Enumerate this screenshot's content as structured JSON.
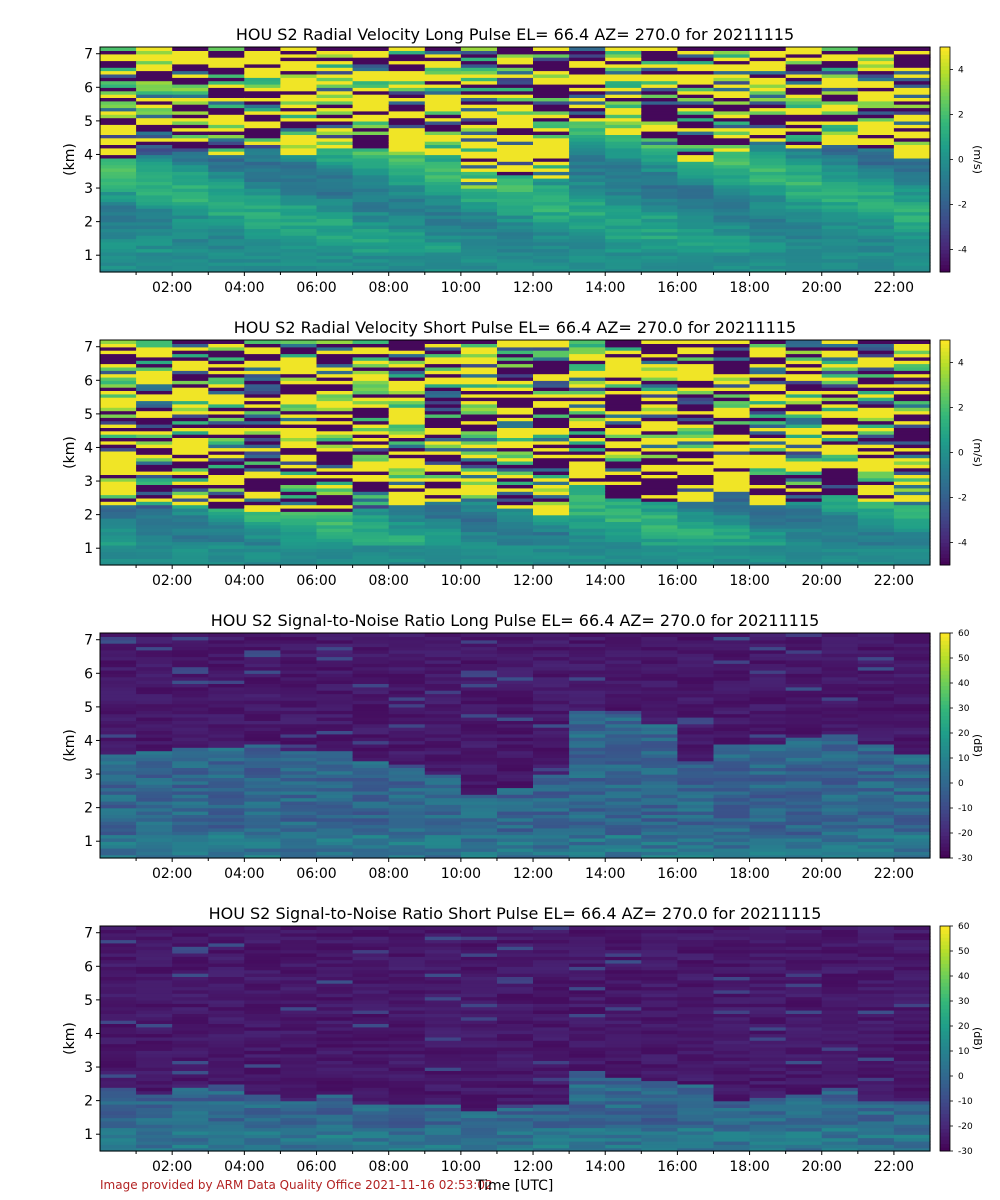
{
  "footer": "Image provided by ARM Data Quality Office 2021-11-16 02:53:02",
  "xlabel": "Time [UTC]",
  "colormap": [
    "#440154",
    "#482878",
    "#3e4a89",
    "#31688e",
    "#26828e",
    "#1f9e89",
    "#35b779",
    "#6ece58",
    "#b5de2b",
    "#fde725"
  ],
  "chart_data": [
    {
      "type": "heatmap",
      "title": "HOU S2 Radial Velocity Long Pulse EL= 66.4 AZ= 270.0 for 20211115",
      "ylabel": "(km)",
      "colorbar_label": "(m/s)",
      "clim": [
        -5,
        5
      ],
      "colorbar_ticks": [
        4,
        2,
        0,
        -2,
        -4
      ],
      "x_ticks": [
        "02:00",
        "04:00",
        "06:00",
        "08:00",
        "10:00",
        "12:00",
        "14:00",
        "16:00",
        "18:00",
        "20:00",
        "22:00"
      ],
      "xlim_hours": [
        0,
        23
      ],
      "y_ticks": [
        1,
        2,
        3,
        4,
        5,
        6,
        7
      ],
      "ylim_km": [
        0.5,
        7.2
      ],
      "pattern": "velocity",
      "boundary_km_by_hour": [
        3.9,
        4.0,
        4.1,
        4.0,
        4.2,
        4.0,
        4.1,
        4.2,
        4.0,
        4.0,
        3.0,
        3.4,
        3.3,
        4.9,
        4.6,
        4.2,
        3.8,
        4.1,
        4.3,
        4.2,
        4.3,
        4.2,
        3.9
      ]
    },
    {
      "type": "heatmap",
      "title": "HOU S2 Radial Velocity Short Pulse EL= 66.4 AZ= 270.0 for 20211115",
      "ylabel": "(km)",
      "colorbar_label": "(m/s)",
      "clim": [
        -5,
        5
      ],
      "colorbar_ticks": [
        4,
        2,
        0,
        -2,
        -4
      ],
      "x_ticks": [
        "02:00",
        "04:00",
        "06:00",
        "08:00",
        "10:00",
        "12:00",
        "14:00",
        "16:00",
        "18:00",
        "20:00",
        "22:00"
      ],
      "xlim_hours": [
        0,
        23
      ],
      "y_ticks": [
        1,
        2,
        3,
        4,
        5,
        6,
        7
      ],
      "ylim_km": [
        0.5,
        7.2
      ],
      "pattern": "velocity",
      "boundary_km_by_hour": [
        2.3,
        2.2,
        2.3,
        2.2,
        2.1,
        2.1,
        2.0,
        2.2,
        2.3,
        2.4,
        2.4,
        2.2,
        2.0,
        2.9,
        2.5,
        2.4,
        2.4,
        2.6,
        2.3,
        2.4,
        2.6,
        2.4,
        2.3
      ]
    },
    {
      "type": "heatmap",
      "title": "HOU S2 Signal-to-Noise Ratio Long Pulse EL= 66.4 AZ= 270.0 for 20211115",
      "ylabel": "(km)",
      "colorbar_label": "(dB)",
      "clim": [
        -30,
        60
      ],
      "colorbar_ticks": [
        60,
        50,
        40,
        30,
        20,
        10,
        0,
        -10,
        -20,
        -30
      ],
      "x_ticks": [
        "02:00",
        "04:00",
        "06:00",
        "08:00",
        "10:00",
        "12:00",
        "14:00",
        "16:00",
        "18:00",
        "20:00",
        "22:00"
      ],
      "xlim_hours": [
        0,
        23
      ],
      "y_ticks": [
        1,
        2,
        3,
        4,
        5,
        6,
        7
      ],
      "ylim_km": [
        0.5,
        7.2
      ],
      "pattern": "snr",
      "cloud_top_km_by_hour": [
        3.6,
        3.7,
        3.8,
        3.8,
        3.9,
        3.7,
        3.7,
        3.4,
        3.2,
        3.0,
        2.4,
        2.6,
        3.0,
        4.8,
        4.7,
        4.5,
        3.4,
        3.9,
        3.9,
        4.1,
        4.2,
        3.9,
        3.6
      ]
    },
    {
      "type": "heatmap",
      "title": "HOU S2 Signal-to-Noise Ratio Short Pulse EL= 66.4 AZ= 270.0 for 20211115",
      "ylabel": "(km)",
      "colorbar_label": "(dB)",
      "clim": [
        -30,
        60
      ],
      "colorbar_ticks": [
        60,
        50,
        40,
        30,
        20,
        10,
        0,
        -10,
        -20,
        -30
      ],
      "x_ticks": [
        "02:00",
        "04:00",
        "06:00",
        "08:00",
        "10:00",
        "12:00",
        "14:00",
        "16:00",
        "18:00",
        "20:00",
        "22:00"
      ],
      "xlim_hours": [
        0,
        23
      ],
      "y_ticks": [
        1,
        2,
        3,
        4,
        5,
        6,
        7
      ],
      "ylim_km": [
        0.5,
        7.2
      ],
      "pattern": "snr",
      "cloud_top_km_by_hour": [
        2.4,
        2.2,
        2.4,
        2.5,
        2.2,
        2.0,
        2.2,
        1.9,
        1.9,
        1.9,
        1.7,
        1.8,
        1.9,
        2.9,
        2.7,
        2.6,
        2.5,
        2.0,
        2.1,
        2.2,
        2.4,
        2.0,
        2.0
      ]
    }
  ]
}
